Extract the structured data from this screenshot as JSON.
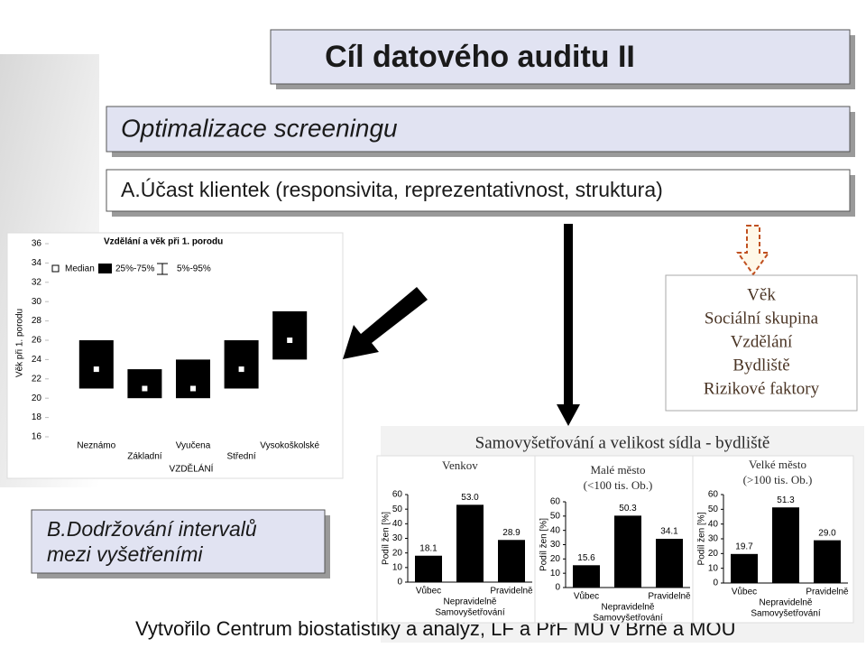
{
  "slide": {
    "title": "Cíl datového auditu II",
    "subtitle": "Optimalizace screeningu",
    "section_a": "A.Účast klientek (responsivita, reprezentativnost, struktura)",
    "section_b": [
      "B.Dodržování intervalů",
      "mezi vyšetřeními"
    ],
    "factors": [
      "Věk",
      "Sociální skupina",
      "Vzdělání",
      "Bydliště",
      "Rizikové faktory"
    ],
    "bars_title": "Samovyšetřování a velikost sídla - bydliště",
    "footer": "Vytvořilo Centrum biostatistiky a analýz, LF a PřF MU v Brně a MOÚ"
  },
  "chart_data": [
    {
      "type": "box",
      "title": "Vzdělání a věk při 1. porodu",
      "legend": [
        "Median",
        "25%-75%",
        "5%-95%"
      ],
      "y_label": "Věk při 1. porodu",
      "x_label": "VZDĚLÁNÍ",
      "categories": [
        "Neznámo",
        "Základní",
        "Vyučena",
        "Střední",
        "Vysokoškolské"
      ],
      "q1": [
        21,
        20,
        20,
        21,
        24
      ],
      "median": [
        23,
        21,
        21,
        23,
        26
      ],
      "q3": [
        26,
        23,
        24,
        26,
        29
      ],
      "color": "#000000",
      "ylim": [
        16,
        36
      ],
      "yticks": [
        16,
        18,
        20,
        22,
        24,
        26,
        28,
        30,
        32,
        34,
        36
      ]
    },
    {
      "type": "bar",
      "title": [
        "Venkov"
      ],
      "y_label": "Podíl žen [%]",
      "x_label": "Samovyšetřování",
      "categories": [
        "Vůbec",
        "Nepravidelně",
        "Pravidelně"
      ],
      "values": [
        18.1,
        53.0,
        28.9
      ],
      "value_labels": [
        "18.1",
        "53.0",
        "28.9"
      ],
      "color": "#000000",
      "ylim": [
        0,
        60
      ],
      "yticks": [
        0,
        10,
        20,
        30,
        40,
        50,
        60
      ]
    },
    {
      "type": "bar",
      "title": [
        "Malé město",
        "(<100 tis. Ob.)"
      ],
      "y_label": "Podíl žen [%]",
      "x_label": "Samovyšetřování",
      "categories": [
        "Vůbec",
        "Nepravidelně",
        "Pravidelně"
      ],
      "values": [
        15.6,
        50.3,
        34.1
      ],
      "value_labels": [
        "15.6",
        "50.3",
        "34.1"
      ],
      "color": "#000000",
      "ylim": [
        0,
        60
      ],
      "yticks": [
        0,
        10,
        20,
        30,
        40,
        50,
        60
      ]
    },
    {
      "type": "bar",
      "title": [
        "Velké město",
        "(>100 tis. Ob.)"
      ],
      "y_label": "Podíl žen [%]",
      "x_label": "Samovyšetřování",
      "categories": [
        "Vůbec",
        "Nepravidelně",
        "Pravidelně"
      ],
      "values": [
        19.7,
        51.3,
        29.0
      ],
      "value_labels": [
        "19.7",
        "51.3",
        "29.0"
      ],
      "color": "#000000",
      "ylim": [
        0,
        60
      ],
      "yticks": [
        0,
        10,
        20,
        30,
        40,
        50,
        60
      ]
    }
  ]
}
